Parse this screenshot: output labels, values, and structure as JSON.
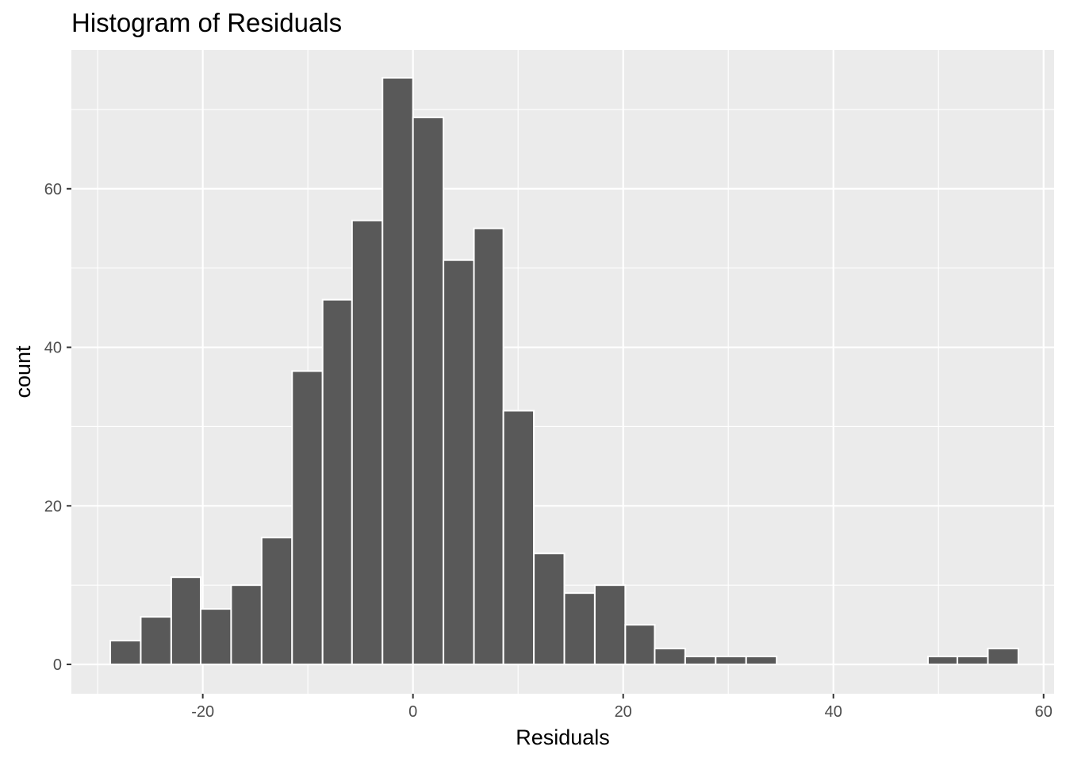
{
  "chart_data": {
    "type": "histogram",
    "title": "Histogram of Residuals",
    "xlabel": "Residuals",
    "ylabel": "count",
    "xlim": [
      -32.5,
      61.0
    ],
    "ylim": [
      -3.7,
      77.5
    ],
    "x_ticks": [
      -20,
      0,
      20,
      40,
      60
    ],
    "y_ticks": [
      0,
      20,
      40,
      60
    ],
    "x_tick_labels": [
      "-20",
      "0",
      "20",
      "40",
      "60"
    ],
    "y_tick_labels": [
      "0",
      "20",
      "40",
      "60"
    ],
    "grid": true,
    "bin_width": 2.88,
    "bins": [
      {
        "x0": -28.8,
        "x1": -25.9,
        "count": 3
      },
      {
        "x0": -25.9,
        "x1": -23.0,
        "count": 6
      },
      {
        "x0": -23.0,
        "x1": -20.2,
        "count": 11
      },
      {
        "x0": -20.2,
        "x1": -17.3,
        "count": 7
      },
      {
        "x0": -17.3,
        "x1": -14.4,
        "count": 10
      },
      {
        "x0": -14.4,
        "x1": -11.5,
        "count": 16
      },
      {
        "x0": -11.5,
        "x1": -8.6,
        "count": 37
      },
      {
        "x0": -8.6,
        "x1": -5.8,
        "count": 46
      },
      {
        "x0": -5.8,
        "x1": -2.9,
        "count": 56
      },
      {
        "x0": -2.9,
        "x1": 0.0,
        "count": 74
      },
      {
        "x0": 0.0,
        "x1": 2.9,
        "count": 69
      },
      {
        "x0": 2.9,
        "x1": 5.8,
        "count": 51
      },
      {
        "x0": 5.8,
        "x1": 8.6,
        "count": 55
      },
      {
        "x0": 8.6,
        "x1": 11.5,
        "count": 32
      },
      {
        "x0": 11.5,
        "x1": 14.4,
        "count": 14
      },
      {
        "x0": 14.4,
        "x1": 17.3,
        "count": 9
      },
      {
        "x0": 17.3,
        "x1": 20.2,
        "count": 10
      },
      {
        "x0": 20.2,
        "x1": 23.0,
        "count": 5
      },
      {
        "x0": 23.0,
        "x1": 25.9,
        "count": 2
      },
      {
        "x0": 25.9,
        "x1": 28.8,
        "count": 1
      },
      {
        "x0": 28.8,
        "x1": 31.7,
        "count": 1
      },
      {
        "x0": 31.7,
        "x1": 34.6,
        "count": 1
      },
      {
        "x0": 34.6,
        "x1": 37.4,
        "count": 0
      },
      {
        "x0": 37.4,
        "x1": 40.3,
        "count": 0
      },
      {
        "x0": 40.3,
        "x1": 43.2,
        "count": 0
      },
      {
        "x0": 43.2,
        "x1": 46.1,
        "count": 0
      },
      {
        "x0": 46.1,
        "x1": 49.0,
        "count": 0
      },
      {
        "x0": 49.0,
        "x1": 51.8,
        "count": 1
      },
      {
        "x0": 51.8,
        "x1": 54.7,
        "count": 1
      },
      {
        "x0": 54.7,
        "x1": 57.6,
        "count": 2
      }
    ],
    "colors": {
      "panel_background": "#ebebeb",
      "grid_line": "#ffffff",
      "bar_fill": "#595959",
      "bar_outline": "#ffffff",
      "tick_label": "#4d4d4d",
      "text": "#000000"
    }
  }
}
